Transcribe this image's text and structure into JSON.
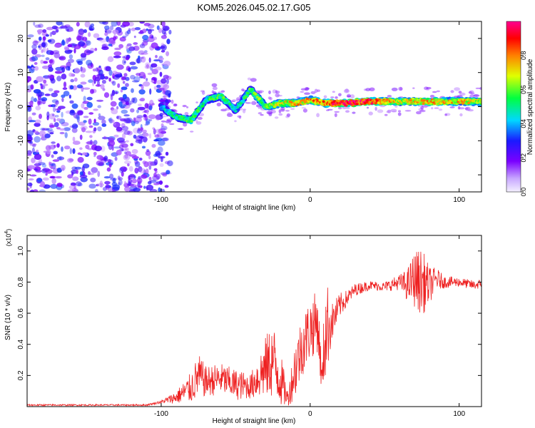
{
  "title": "KOM5.2026.045.02.17.G05",
  "chart_data": [
    {
      "type": "heatmap",
      "title": "KOM5.2026.045.02.17.G05",
      "xlabel": "Height of straight line (km)",
      "ylabel": "Frequency (Hz)",
      "xlim": [
        -190,
        115
      ],
      "ylim": [
        -25,
        25
      ],
      "xticks": [
        -100,
        0,
        100
      ],
      "yticks": [
        -20,
        -10,
        0,
        10,
        20
      ],
      "colorbar": {
        "label": "Normalized spectral amplitude",
        "range": [
          0,
          1
        ],
        "ticks": [
          0.0,
          0.2,
          0.4,
          0.6,
          0.8
        ],
        "colormap": [
          "#f4f0ff",
          "#7a00ff",
          "#1a1aff",
          "#00d8ff",
          "#00ff40",
          "#e0ff00",
          "#ff8000",
          "#ff0000",
          "#ff0090"
        ]
      },
      "ridge": {
        "description": "dominant spectral line (frequency vs height)",
        "x": [
          -100,
          -90,
          -80,
          -70,
          -60,
          -50,
          -40,
          -30,
          -20,
          -10,
          0,
          10,
          20,
          40,
          60,
          80,
          100,
          115
        ],
        "y": [
          0,
          -3,
          -4,
          2,
          3,
          -1,
          5,
          0,
          1,
          1,
          2,
          1,
          1,
          1.5,
          1.5,
          1.5,
          1.5,
          1.5
        ],
        "amplitude": [
          0.35,
          0.45,
          0.5,
          0.45,
          0.5,
          0.4,
          0.5,
          0.55,
          0.6,
          0.65,
          0.7,
          0.75,
          0.9,
          0.85,
          0.6,
          0.7,
          0.65,
          0.6
        ]
      },
      "noise_region": {
        "x_from": -190,
        "x_to": -100,
        "amplitude": 0.15
      }
    },
    {
      "type": "line",
      "xlabel": "Height of straight line (km)",
      "ylabel": "SNR (10 * v/v)",
      "exponent_label": "(x10",
      "exponent_power": "4",
      "exponent_close": ")",
      "xlim": [
        -190,
        115
      ],
      "ylim": [
        0,
        1.1
      ],
      "xticks": [
        -100,
        0,
        100
      ],
      "yticks": [
        0.2,
        0.4,
        0.6,
        0.8,
        1.0
      ],
      "series": [
        {
          "name": "SNR",
          "color": "#ee2222",
          "x": [
            -190,
            -110,
            -100,
            -90,
            -80,
            -75,
            -70,
            -60,
            -50,
            -40,
            -30,
            -25,
            -20,
            -15,
            -10,
            -5,
            0,
            5,
            8,
            10,
            15,
            20,
            25,
            30,
            40,
            50,
            60,
            65,
            70,
            75,
            80,
            85,
            90,
            100,
            110,
            115
          ],
          "y": [
            0.01,
            0.01,
            0.03,
            0.06,
            0.12,
            0.2,
            0.16,
            0.18,
            0.14,
            0.13,
            0.25,
            0.3,
            0.18,
            0.05,
            0.25,
            0.4,
            0.5,
            0.55,
            0.15,
            0.5,
            0.55,
            0.65,
            0.7,
            0.75,
            0.78,
            0.77,
            0.8,
            0.78,
            0.82,
            0.8,
            0.78,
            0.82,
            0.8,
            0.8,
            0.78,
            0.79
          ],
          "spread": [
            0.005,
            0.005,
            0.01,
            0.04,
            0.1,
            0.14,
            0.1,
            0.1,
            0.1,
            0.08,
            0.2,
            0.25,
            0.18,
            0.05,
            0.2,
            0.2,
            0.2,
            0.2,
            0.1,
            0.35,
            0.12,
            0.08,
            0.05,
            0.04,
            0.03,
            0.03,
            0.05,
            0.1,
            0.18,
            0.22,
            0.12,
            0.07,
            0.04,
            0.03,
            0.03,
            0.03
          ]
        }
      ]
    }
  ]
}
